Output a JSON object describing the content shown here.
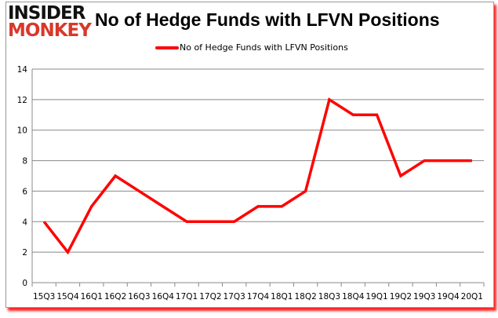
{
  "logo": {
    "line1": "INSIDER",
    "line2": "MONKEY"
  },
  "chart_data": {
    "type": "line",
    "title": "No of Hedge Funds with LFVN Positions",
    "categories": [
      "15Q3",
      "15Q4",
      "16Q1",
      "16Q2",
      "16Q3",
      "16Q4",
      "17Q1",
      "17Q2",
      "17Q3",
      "17Q4",
      "18Q1",
      "18Q2",
      "18Q3",
      "18Q4",
      "19Q1",
      "19Q2",
      "19Q3",
      "19Q4",
      "20Q1"
    ],
    "series": [
      {
        "name": "No of Hedge Funds with LFVN Positions",
        "values": [
          4,
          2,
          5,
          7,
          6,
          5,
          4,
          4,
          4,
          5,
          5,
          6,
          12,
          11,
          11,
          7,
          8,
          8,
          8
        ],
        "color": "#ff0000"
      }
    ],
    "ylim": [
      0,
      14
    ],
    "yticks": [
      0,
      2,
      4,
      6,
      8,
      10,
      12,
      14
    ],
    "grid": true,
    "legend": "top-center"
  }
}
